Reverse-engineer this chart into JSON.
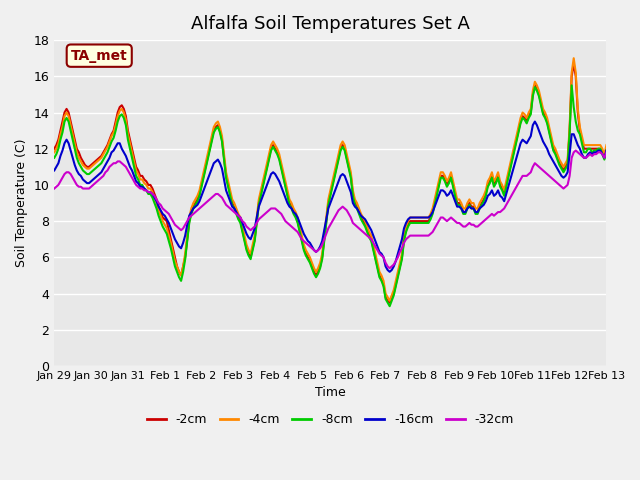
{
  "title": "Alfalfa Soil Temperatures Set A",
  "xlabel": "Time",
  "ylabel": "Soil Temperature (C)",
  "ylim": [
    0,
    18
  ],
  "yticks": [
    0,
    2,
    4,
    6,
    8,
    10,
    12,
    14,
    16,
    18
  ],
  "annotation": "TA_met",
  "bg_color": "#f0f0f0",
  "plot_bg": "#e8e8e8",
  "series_colors": [
    "#cc0000",
    "#ff8800",
    "#00cc00",
    "#0000cc",
    "#cc00cc"
  ],
  "series_labels": [
    "-2cm",
    "-4cm",
    "-8cm",
    "-16cm",
    "-32cm"
  ],
  "xtick_labels": [
    "Jan 29",
    "Jan 30",
    "Jan 31",
    "Feb 1",
    "Feb 2",
    "Feb 3",
    "Feb 4",
    "Feb 5",
    "Feb 6",
    "Feb 7",
    "Feb 8",
    "Feb 9",
    "Feb 10",
    "Feb 11",
    "Feb 12",
    "Feb 13"
  ],
  "data_2cm": [
    12.0,
    12.2,
    12.5,
    13.0,
    13.5,
    14.0,
    14.2,
    14.0,
    13.5,
    13.0,
    12.5,
    12.0,
    11.8,
    11.5,
    11.3,
    11.1,
    11.0,
    11.0,
    11.1,
    11.2,
    11.3,
    11.4,
    11.5,
    11.6,
    11.8,
    12.0,
    12.2,
    12.5,
    12.8,
    13.0,
    13.5,
    14.0,
    14.3,
    14.4,
    14.2,
    13.8,
    13.0,
    12.5,
    12.0,
    11.5,
    11.0,
    10.8,
    10.5,
    10.5,
    10.3,
    10.2,
    10.0,
    10.0,
    9.8,
    9.5,
    9.2,
    8.8,
    8.5,
    8.2,
    8.1,
    8.0,
    7.5,
    7.0,
    6.5,
    6.0,
    5.5,
    5.2,
    5.0,
    5.5,
    6.0,
    7.0,
    8.0,
    8.5,
    8.8,
    9.0,
    9.2,
    9.5,
    10.0,
    10.5,
    11.0,
    11.5,
    12.0,
    12.5,
    13.0,
    13.2,
    13.3,
    13.0,
    12.5,
    11.5,
    10.5,
    10.0,
    9.5,
    9.0,
    8.8,
    8.5,
    8.2,
    8.0,
    7.5,
    7.0,
    6.5,
    6.2,
    6.0,
    6.5,
    7.0,
    8.0,
    9.0,
    9.5,
    10.0,
    10.5,
    11.0,
    11.5,
    12.0,
    12.2,
    12.0,
    11.8,
    11.5,
    11.0,
    10.5,
    10.0,
    9.5,
    9.0,
    8.8,
    8.5,
    8.3,
    8.0,
    7.5,
    7.0,
    6.5,
    6.2,
    6.0,
    5.8,
    5.5,
    5.2,
    5.0,
    5.2,
    5.5,
    6.0,
    7.0,
    8.0,
    9.0,
    9.5,
    10.0,
    10.5,
    11.0,
    11.5,
    12.0,
    12.2,
    12.0,
    11.5,
    11.0,
    10.5,
    9.5,
    9.0,
    8.8,
    8.5,
    8.2,
    8.0,
    7.8,
    7.5,
    7.2,
    7.0,
    6.5,
    6.0,
    5.5,
    5.0,
    4.8,
    4.5,
    3.8,
    3.6,
    3.5,
    3.8,
    4.0,
    4.5,
    5.0,
    5.5,
    6.0,
    7.0,
    7.5,
    7.8,
    8.0,
    8.0,
    8.0,
    8.0,
    8.0,
    8.0,
    8.0,
    8.0,
    8.0,
    8.0,
    8.2,
    8.5,
    9.0,
    9.5,
    10.0,
    10.5,
    10.5,
    10.3,
    10.0,
    10.2,
    10.5,
    10.0,
    9.5,
    9.0,
    9.0,
    8.8,
    8.5,
    8.5,
    8.8,
    9.0,
    8.8,
    8.8,
    8.5,
    8.5,
    8.8,
    9.0,
    9.2,
    9.5,
    10.0,
    10.2,
    10.5,
    10.0,
    10.2,
    10.5,
    10.0,
    9.8,
    9.5,
    10.0,
    10.5,
    11.0,
    11.5,
    12.0,
    12.5,
    13.0,
    13.5,
    13.8,
    13.7,
    13.5,
    13.8,
    14.0,
    15.0,
    15.5,
    15.3,
    15.0,
    14.5,
    14.0,
    13.8,
    13.5,
    13.0,
    12.5,
    12.0,
    11.8,
    11.5,
    11.2,
    11.0,
    10.8,
    11.0,
    11.2,
    13.0,
    16.0,
    16.7,
    16.0,
    14.0,
    13.0,
    12.5,
    12.0,
    12.0,
    12.0,
    12.0,
    12.0,
    12.0,
    12.0,
    12.0,
    12.0,
    11.8,
    11.5,
    12.0
  ],
  "data_4cm": [
    11.8,
    12.0,
    12.3,
    12.8,
    13.2,
    13.8,
    14.0,
    13.8,
    13.3,
    12.8,
    12.3,
    11.8,
    11.5,
    11.3,
    11.1,
    11.0,
    10.9,
    10.9,
    11.0,
    11.1,
    11.2,
    11.3,
    11.4,
    11.5,
    11.7,
    11.9,
    12.1,
    12.4,
    12.7,
    12.9,
    13.3,
    13.8,
    14.1,
    14.2,
    14.0,
    13.6,
    12.8,
    12.3,
    11.8,
    11.3,
    10.8,
    10.6,
    10.3,
    10.3,
    10.1,
    10.0,
    9.8,
    9.8,
    9.6,
    9.3,
    9.0,
    8.6,
    8.3,
    8.0,
    7.8,
    7.6,
    7.2,
    6.8,
    6.3,
    5.8,
    5.5,
    5.2,
    5.0,
    5.5,
    6.2,
    7.2,
    8.2,
    8.7,
    9.0,
    9.2,
    9.4,
    9.7,
    10.2,
    10.7,
    11.2,
    11.7,
    12.2,
    12.7,
    13.2,
    13.4,
    13.5,
    13.2,
    12.7,
    11.7,
    10.7,
    10.2,
    9.7,
    9.2,
    9.0,
    8.7,
    8.4,
    8.2,
    7.7,
    7.2,
    6.7,
    6.4,
    6.2,
    6.7,
    7.2,
    8.2,
    9.2,
    9.7,
    10.2,
    10.7,
    11.2,
    11.7,
    12.2,
    12.4,
    12.2,
    12.0,
    11.7,
    11.2,
    10.7,
    10.2,
    9.7,
    9.2,
    9.0,
    8.7,
    8.5,
    8.2,
    7.7,
    7.2,
    6.7,
    6.4,
    6.2,
    6.0,
    5.7,
    5.4,
    5.2,
    5.4,
    5.7,
    6.2,
    7.2,
    8.2,
    9.2,
    9.7,
    10.2,
    10.7,
    11.2,
    11.7,
    12.2,
    12.4,
    12.2,
    11.7,
    11.2,
    10.7,
    9.7,
    9.2,
    9.0,
    8.7,
    8.4,
    8.2,
    8.0,
    7.7,
    7.4,
    7.2,
    6.7,
    6.2,
    5.7,
    5.2,
    5.0,
    4.7,
    4.0,
    3.8,
    3.6,
    3.9,
    4.2,
    4.7,
    5.2,
    5.7,
    6.2,
    7.2,
    7.7,
    8.0,
    8.2,
    8.2,
    8.2,
    8.2,
    8.2,
    8.2,
    8.2,
    8.2,
    8.2,
    8.2,
    8.4,
    8.7,
    9.2,
    9.7,
    10.2,
    10.7,
    10.7,
    10.5,
    10.2,
    10.4,
    10.7,
    10.2,
    9.7,
    9.2,
    9.2,
    9.0,
    8.7,
    8.7,
    9.0,
    9.2,
    9.0,
    9.0,
    8.7,
    8.7,
    9.0,
    9.2,
    9.4,
    9.7,
    10.2,
    10.4,
    10.7,
    10.2,
    10.4,
    10.7,
    10.2,
    10.0,
    9.7,
    10.2,
    10.7,
    11.2,
    11.7,
    12.2,
    12.7,
    13.2,
    13.7,
    14.0,
    13.9,
    13.7,
    14.0,
    14.2,
    15.2,
    15.7,
    15.5,
    15.2,
    14.7,
    14.2,
    14.0,
    13.7,
    13.2,
    12.7,
    12.2,
    12.0,
    11.7,
    11.4,
    11.2,
    11.0,
    11.2,
    11.4,
    13.2,
    16.2,
    17.0,
    16.2,
    14.2,
    13.2,
    12.7,
    12.2,
    12.2,
    12.2,
    12.2,
    12.2,
    12.2,
    12.2,
    12.2,
    12.2,
    12.0,
    11.7,
    12.2
  ],
  "data_8cm": [
    11.5,
    11.7,
    12.0,
    12.5,
    12.9,
    13.5,
    13.7,
    13.5,
    13.0,
    12.5,
    12.0,
    11.5,
    11.2,
    11.0,
    10.8,
    10.7,
    10.6,
    10.6,
    10.7,
    10.8,
    10.9,
    11.0,
    11.1,
    11.2,
    11.4,
    11.6,
    11.8,
    12.1,
    12.4,
    12.6,
    13.0,
    13.5,
    13.8,
    13.9,
    13.7,
    13.3,
    12.5,
    12.0,
    11.5,
    11.0,
    10.5,
    10.3,
    10.0,
    10.0,
    9.8,
    9.7,
    9.5,
    9.5,
    9.3,
    9.0,
    8.7,
    8.3,
    8.0,
    7.7,
    7.5,
    7.3,
    6.9,
    6.5,
    6.0,
    5.5,
    5.2,
    4.9,
    4.7,
    5.2,
    5.9,
    6.9,
    7.9,
    8.4,
    8.7,
    8.9,
    9.1,
    9.4,
    9.9,
    10.4,
    10.9,
    11.4,
    11.9,
    12.4,
    12.9,
    13.1,
    13.2,
    12.9,
    12.4,
    11.4,
    10.4,
    9.9,
    9.4,
    8.9,
    8.7,
    8.4,
    8.1,
    7.9,
    7.4,
    6.9,
    6.4,
    6.1,
    5.9,
    6.4,
    6.9,
    7.9,
    8.9,
    9.4,
    9.9,
    10.4,
    10.9,
    11.4,
    11.9,
    12.1,
    11.9,
    11.7,
    11.4,
    10.9,
    10.4,
    9.9,
    9.4,
    8.9,
    8.7,
    8.4,
    8.2,
    7.9,
    7.4,
    6.9,
    6.4,
    6.1,
    5.9,
    5.7,
    5.4,
    5.1,
    4.9,
    5.1,
    5.4,
    5.9,
    6.9,
    7.9,
    8.9,
    9.4,
    9.9,
    10.4,
    10.9,
    11.4,
    11.9,
    12.1,
    11.9,
    11.4,
    10.9,
    10.4,
    9.4,
    8.9,
    8.7,
    8.4,
    8.1,
    7.9,
    7.7,
    7.4,
    7.1,
    6.9,
    6.4,
    5.9,
    5.4,
    4.9,
    4.7,
    4.4,
    3.7,
    3.5,
    3.3,
    3.6,
    3.9,
    4.4,
    4.9,
    5.4,
    5.9,
    6.9,
    7.4,
    7.7,
    7.9,
    7.9,
    7.9,
    7.9,
    7.9,
    7.9,
    7.9,
    7.9,
    7.9,
    7.9,
    8.1,
    8.4,
    8.9,
    9.4,
    9.9,
    10.4,
    10.4,
    10.2,
    9.9,
    10.1,
    10.4,
    9.9,
    9.4,
    8.9,
    8.9,
    8.7,
    8.4,
    8.4,
    8.7,
    8.9,
    8.7,
    8.7,
    8.4,
    8.4,
    8.7,
    8.9,
    9.1,
    9.4,
    9.9,
    10.1,
    10.4,
    9.9,
    10.1,
    10.4,
    9.9,
    9.7,
    9.4,
    9.9,
    10.4,
    10.9,
    11.4,
    11.9,
    12.4,
    12.9,
    13.4,
    13.7,
    13.6,
    13.4,
    13.7,
    13.9,
    14.9,
    15.4,
    15.2,
    14.9,
    14.4,
    13.9,
    13.7,
    13.4,
    12.9,
    12.4,
    11.9,
    11.7,
    11.4,
    11.1,
    10.9,
    10.7,
    10.9,
    11.1,
    12.9,
    15.5,
    14.3,
    13.5,
    13.0,
    12.8,
    12.3,
    11.8,
    11.8,
    12.0,
    12.0,
    11.8,
    11.9,
    11.9,
    12.0,
    12.0,
    11.7,
    11.4,
    11.9
  ],
  "data_16cm": [
    10.8,
    11.0,
    11.2,
    11.6,
    11.9,
    12.3,
    12.5,
    12.3,
    11.9,
    11.5,
    11.1,
    10.8,
    10.6,
    10.5,
    10.3,
    10.2,
    10.1,
    10.1,
    10.2,
    10.3,
    10.4,
    10.5,
    10.6,
    10.7,
    10.9,
    11.1,
    11.3,
    11.5,
    11.8,
    11.9,
    12.1,
    12.3,
    12.3,
    12.0,
    11.8,
    11.6,
    11.3,
    11.0,
    10.8,
    10.5,
    10.2,
    10.1,
    9.9,
    9.9,
    9.8,
    9.7,
    9.6,
    9.6,
    9.5,
    9.3,
    9.1,
    8.8,
    8.6,
    8.4,
    8.3,
    8.1,
    7.9,
    7.6,
    7.3,
    7.0,
    6.8,
    6.6,
    6.5,
    6.8,
    7.2,
    7.8,
    8.3,
    8.5,
    8.7,
    8.8,
    8.9,
    9.1,
    9.4,
    9.7,
    10.0,
    10.3,
    10.6,
    10.9,
    11.2,
    11.3,
    11.4,
    11.2,
    10.9,
    10.3,
    9.7,
    9.4,
    9.1,
    8.8,
    8.7,
    8.5,
    8.3,
    8.2,
    7.9,
    7.6,
    7.3,
    7.1,
    7.0,
    7.3,
    7.6,
    8.2,
    8.8,
    9.1,
    9.4,
    9.7,
    10.0,
    10.3,
    10.6,
    10.7,
    10.6,
    10.4,
    10.2,
    9.9,
    9.6,
    9.3,
    9.0,
    8.8,
    8.7,
    8.5,
    8.4,
    8.2,
    7.9,
    7.6,
    7.3,
    7.1,
    6.9,
    6.8,
    6.6,
    6.4,
    6.3,
    6.4,
    6.6,
    6.9,
    7.5,
    8.1,
    8.7,
    9.0,
    9.3,
    9.6,
    9.9,
    10.2,
    10.5,
    10.6,
    10.5,
    10.2,
    9.9,
    9.6,
    9.0,
    8.8,
    8.7,
    8.5,
    8.3,
    8.2,
    8.1,
    7.9,
    7.7,
    7.5,
    7.2,
    6.9,
    6.6,
    6.3,
    6.2,
    6.0,
    5.5,
    5.3,
    5.2,
    5.3,
    5.5,
    5.8,
    6.2,
    6.6,
    7.0,
    7.6,
    7.9,
    8.1,
    8.2,
    8.2,
    8.2,
    8.2,
    8.2,
    8.2,
    8.2,
    8.2,
    8.2,
    8.2,
    8.3,
    8.5,
    8.8,
    9.1,
    9.4,
    9.7,
    9.7,
    9.6,
    9.4,
    9.5,
    9.7,
    9.4,
    9.1,
    8.8,
    8.8,
    8.7,
    8.5,
    8.5,
    8.7,
    8.8,
    8.7,
    8.7,
    8.5,
    8.5,
    8.7,
    8.8,
    8.9,
    9.1,
    9.4,
    9.5,
    9.7,
    9.4,
    9.5,
    9.7,
    9.4,
    9.3,
    9.1,
    9.5,
    9.9,
    10.3,
    10.7,
    11.1,
    11.5,
    11.9,
    12.3,
    12.5,
    12.4,
    12.3,
    12.5,
    12.7,
    13.3,
    13.5,
    13.3,
    13.0,
    12.7,
    12.4,
    12.2,
    12.0,
    11.7,
    11.5,
    11.3,
    11.1,
    10.9,
    10.7,
    10.5,
    10.4,
    10.5,
    10.7,
    11.7,
    12.8,
    12.8,
    12.5,
    12.2,
    12.0,
    11.7,
    11.5,
    11.5,
    11.7,
    11.8,
    11.7,
    11.8,
    11.8,
    11.9,
    11.9,
    11.7,
    11.5,
    11.9
  ],
  "data_32cm": [
    9.8,
    9.9,
    10.0,
    10.2,
    10.4,
    10.6,
    10.7,
    10.7,
    10.6,
    10.4,
    10.2,
    10.0,
    9.9,
    9.9,
    9.8,
    9.8,
    9.8,
    9.8,
    9.9,
    10.0,
    10.1,
    10.2,
    10.3,
    10.4,
    10.5,
    10.7,
    10.8,
    11.0,
    11.1,
    11.2,
    11.2,
    11.3,
    11.3,
    11.2,
    11.1,
    11.0,
    10.8,
    10.6,
    10.4,
    10.2,
    10.0,
    9.9,
    9.8,
    9.8,
    9.7,
    9.7,
    9.6,
    9.6,
    9.5,
    9.4,
    9.2,
    9.0,
    8.9,
    8.7,
    8.6,
    8.5,
    8.4,
    8.2,
    8.0,
    7.8,
    7.7,
    7.6,
    7.5,
    7.6,
    7.8,
    8.0,
    8.2,
    8.3,
    8.4,
    8.5,
    8.6,
    8.7,
    8.8,
    8.9,
    9.0,
    9.1,
    9.2,
    9.3,
    9.4,
    9.5,
    9.5,
    9.4,
    9.3,
    9.1,
    8.9,
    8.8,
    8.7,
    8.6,
    8.5,
    8.4,
    8.3,
    8.2,
    8.0,
    7.9,
    7.7,
    7.6,
    7.5,
    7.6,
    7.7,
    7.9,
    8.1,
    8.2,
    8.3,
    8.4,
    8.5,
    8.6,
    8.7,
    8.7,
    8.7,
    8.6,
    8.5,
    8.4,
    8.2,
    8.0,
    7.9,
    7.8,
    7.7,
    7.6,
    7.5,
    7.4,
    7.2,
    7.0,
    6.9,
    6.8,
    6.7,
    6.6,
    6.5,
    6.4,
    6.3,
    6.4,
    6.5,
    6.7,
    7.0,
    7.3,
    7.6,
    7.8,
    8.0,
    8.2,
    8.4,
    8.6,
    8.7,
    8.8,
    8.7,
    8.6,
    8.4,
    8.2,
    7.9,
    7.8,
    7.7,
    7.6,
    7.5,
    7.4,
    7.3,
    7.2,
    7.1,
    7.0,
    6.8,
    6.6,
    6.4,
    6.2,
    6.1,
    6.0,
    5.7,
    5.5,
    5.4,
    5.5,
    5.6,
    5.8,
    6.0,
    6.3,
    6.5,
    6.8,
    7.0,
    7.1,
    7.2,
    7.2,
    7.2,
    7.2,
    7.2,
    7.2,
    7.2,
    7.2,
    7.2,
    7.2,
    7.3,
    7.4,
    7.6,
    7.8,
    8.0,
    8.2,
    8.2,
    8.1,
    8.0,
    8.1,
    8.2,
    8.1,
    8.0,
    7.9,
    7.9,
    7.8,
    7.7,
    7.7,
    7.8,
    7.9,
    7.8,
    7.8,
    7.7,
    7.7,
    7.8,
    7.9,
    8.0,
    8.1,
    8.2,
    8.3,
    8.4,
    8.3,
    8.4,
    8.5,
    8.5,
    8.6,
    8.7,
    8.9,
    9.1,
    9.3,
    9.5,
    9.7,
    9.9,
    10.1,
    10.3,
    10.5,
    10.5,
    10.5,
    10.6,
    10.7,
    11.0,
    11.2,
    11.1,
    11.0,
    10.9,
    10.8,
    10.7,
    10.6,
    10.5,
    10.4,
    10.3,
    10.2,
    10.1,
    10.0,
    9.9,
    9.8,
    9.9,
    10.0,
    10.5,
    11.5,
    11.8,
    11.9,
    11.8,
    11.7,
    11.6,
    11.5,
    11.5,
    11.6,
    11.7,
    11.6,
    11.7,
    11.7,
    11.8,
    11.8,
    11.7,
    11.5,
    11.8
  ]
}
